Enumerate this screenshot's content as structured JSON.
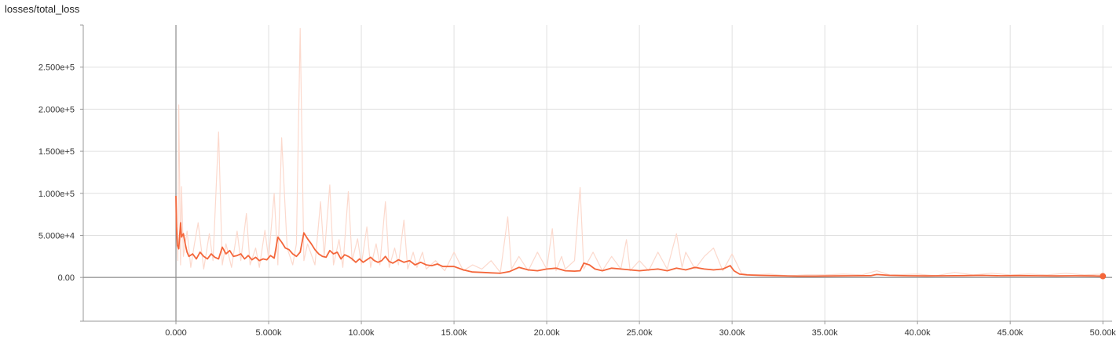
{
  "colors": {
    "smoothed": "#f4663a",
    "raw": "#fcd9cd",
    "grid": "#e0e0e0",
    "axis": "#999999",
    "zero_line": "#8c8c8c"
  },
  "chart_data": {
    "type": "line",
    "title": "losses/total_loss",
    "xlabel": "",
    "ylabel": "",
    "xlim": [
      -5000,
      50500
    ],
    "ylim": [
      -52000,
      300000
    ],
    "grid": true,
    "x_ticks": [
      0,
      5000,
      10000,
      15000,
      20000,
      25000,
      30000,
      35000,
      40000,
      45000,
      50000
    ],
    "x_tick_labels": [
      "0.000",
      "5.000k",
      "10.00k",
      "15.00k",
      "20.00k",
      "25.00k",
      "30.00k",
      "35.00k",
      "40.00k",
      "45.00k",
      "50.00k"
    ],
    "y_ticks": [
      0,
      50000,
      100000,
      150000,
      200000,
      250000
    ],
    "y_tick_labels": [
      "0.00",
      "5.000e+4",
      "1.000e+5",
      "1.500e+5",
      "2.000e+5",
      "2.500e+5"
    ],
    "series": [
      {
        "role": "raw",
        "x": [
          0,
          100,
          150,
          250,
          300,
          400,
          600,
          800,
          1000,
          1200,
          1500,
          1800,
          2000,
          2300,
          2500,
          2700,
          3000,
          3300,
          3500,
          3800,
          4000,
          4300,
          4500,
          4800,
          5000,
          5300,
          5500,
          5700,
          6000,
          6300,
          6500,
          6700,
          6900,
          7100,
          7500,
          7800,
          8000,
          8300,
          8500,
          8800,
          9000,
          9300,
          9500,
          9800,
          10000,
          10300,
          10500,
          10800,
          11000,
          11300,
          11500,
          11800,
          12000,
          12300,
          12500,
          12800,
          13000,
          13300,
          13500,
          14000,
          14500,
          15000,
          15500,
          16000,
          16500,
          17000,
          17500,
          17900,
          18100,
          18500,
          19000,
          19500,
          20000,
          20300,
          20500,
          20800,
          21000,
          21500,
          21800,
          22000,
          22500,
          23000,
          23500,
          24000,
          24300,
          24500,
          25000,
          25500,
          26000,
          26500,
          27000,
          27300,
          27500,
          28000,
          28500,
          29000,
          29500,
          30000,
          30500,
          31000,
          32000,
          33000,
          34000,
          35000,
          36000,
          37000,
          37800,
          38500,
          40000,
          41000,
          42000,
          43000,
          44000,
          45000,
          46000,
          47000,
          48000,
          49000,
          50000
        ],
        "y": [
          95000,
          20000,
          205000,
          15000,
          108000,
          25000,
          55000,
          12000,
          40000,
          65000,
          10000,
          52000,
          20000,
          173000,
          15000,
          40000,
          12000,
          55000,
          20000,
          76000,
          15000,
          35000,
          12000,
          56000,
          22000,
          100000,
          15000,
          166000,
          35000,
          15000,
          40000,
          296000,
          20000,
          40000,
          15000,
          90000,
          25000,
          110000,
          15000,
          45000,
          12000,
          102000,
          20000,
          46000,
          15000,
          60000,
          12000,
          40000,
          15000,
          90000,
          12000,
          35000,
          15000,
          68000,
          10000,
          30000,
          12000,
          30000,
          10000,
          20000,
          8000,
          30000,
          8000,
          15000,
          10000,
          20000,
          6000,
          72000,
          10000,
          25000,
          8000,
          30000,
          10000,
          58000,
          8000,
          25000,
          10000,
          20000,
          107000,
          10000,
          30000,
          8000,
          25000,
          10000,
          45000,
          8000,
          20000,
          8000,
          30000,
          10000,
          52000,
          12000,
          30000,
          10000,
          25000,
          35000,
          8000,
          28000,
          5000,
          3000,
          4000,
          2000,
          3000,
          3000,
          4000,
          3000,
          8000,
          3000,
          4000,
          2000,
          6000,
          3000,
          5000,
          3000,
          4000,
          3000,
          5000,
          3000,
          4000
        ]
      },
      {
        "role": "smoothed",
        "x": [
          0,
          30,
          80,
          150,
          250,
          300,
          400,
          500,
          600,
          700,
          900,
          1100,
          1300,
          1500,
          1700,
          1900,
          2100,
          2300,
          2500,
          2700,
          2900,
          3100,
          3300,
          3500,
          3700,
          3900,
          4100,
          4300,
          4500,
          4700,
          4900,
          5100,
          5300,
          5500,
          5700,
          5900,
          6100,
          6300,
          6500,
          6700,
          6900,
          7100,
          7300,
          7500,
          7700,
          7900,
          8100,
          8300,
          8500,
          8700,
          8900,
          9100,
          9300,
          9500,
          9700,
          9900,
          10100,
          10300,
          10500,
          10700,
          10900,
          11100,
          11300,
          11500,
          11700,
          12000,
          12300,
          12600,
          12900,
          13200,
          13500,
          13800,
          14100,
          14400,
          14700,
          15000,
          15500,
          16000,
          16500,
          17000,
          17500,
          18000,
          18500,
          19000,
          19500,
          20000,
          20500,
          21000,
          21500,
          21800,
          22000,
          22300,
          22600,
          23000,
          23500,
          24000,
          24500,
          25000,
          25500,
          26000,
          26500,
          27000,
          27500,
          28000,
          28500,
          29000,
          29500,
          29900,
          30100,
          30400,
          30800,
          31500,
          32500,
          33500,
          34500,
          35500,
          36500,
          37500,
          37800,
          38500,
          39500,
          40500,
          41500,
          42500,
          43500,
          44500,
          45500,
          46500,
          47500,
          48500,
          49500,
          50000
        ],
        "y": [
          97000,
          60000,
          38000,
          34000,
          65000,
          48000,
          52000,
          40000,
          30000,
          25000,
          28000,
          22000,
          30000,
          25000,
          22000,
          28000,
          24000,
          22000,
          36000,
          28000,
          32000,
          25000,
          26000,
          28000,
          22000,
          26000,
          21000,
          24000,
          20000,
          22000,
          21000,
          26000,
          23000,
          48000,
          42000,
          35000,
          33000,
          28000,
          25000,
          30000,
          53000,
          46000,
          40000,
          33000,
          28000,
          25000,
          24000,
          32000,
          28000,
          30000,
          22000,
          27000,
          25000,
          22000,
          18000,
          22000,
          18000,
          21000,
          24000,
          20000,
          18000,
          20000,
          25000,
          19000,
          17000,
          21000,
          18000,
          20000,
          15000,
          18000,
          15000,
          14000,
          16000,
          13000,
          13000,
          13000,
          9000,
          6500,
          6000,
          5500,
          5000,
          7000,
          12000,
          9000,
          8000,
          10000,
          11000,
          8000,
          7500,
          8000,
          17000,
          15000,
          10000,
          8000,
          11000,
          10000,
          9000,
          8000,
          9000,
          10000,
          8000,
          11000,
          9000,
          12000,
          10000,
          9000,
          10000,
          14000,
          8000,
          4000,
          3000,
          2500,
          2000,
          1500,
          1500,
          1800,
          2000,
          2200,
          3500,
          2500,
          2000,
          1800,
          2000,
          2200,
          2500,
          2000,
          2200,
          2000,
          1800,
          2000,
          1800,
          1500
        ]
      }
    ],
    "end_marker": {
      "x": 50000,
      "y": 1500
    }
  }
}
